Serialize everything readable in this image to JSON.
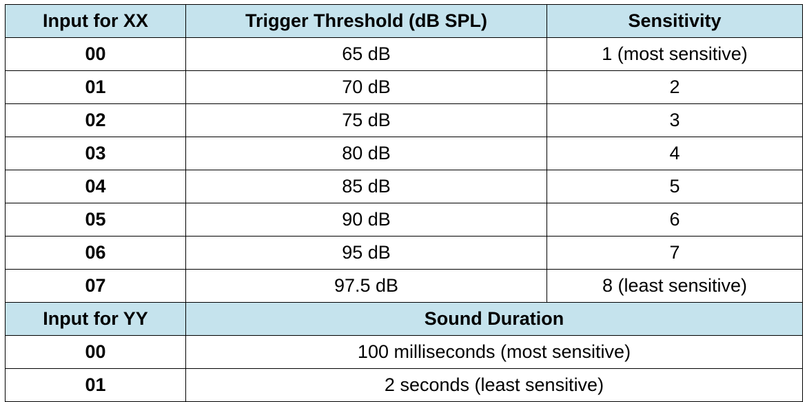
{
  "xx_table": {
    "headers": {
      "input": "Input for XX",
      "threshold": "Trigger Threshold (dB SPL)",
      "sensitivity": "Sensitivity"
    },
    "rows": [
      {
        "input": "00",
        "threshold": "65 dB",
        "sensitivity": "1 (most sensitive)"
      },
      {
        "input": "01",
        "threshold": "70 dB",
        "sensitivity": "2"
      },
      {
        "input": "02",
        "threshold": "75 dB",
        "sensitivity": "3"
      },
      {
        "input": "03",
        "threshold": "80 dB",
        "sensitivity": "4"
      },
      {
        "input": "04",
        "threshold": "85 dB",
        "sensitivity": "5"
      },
      {
        "input": "05",
        "threshold": "90 dB",
        "sensitivity": "6"
      },
      {
        "input": "06",
        "threshold": "95 dB",
        "sensitivity": "7"
      },
      {
        "input": "07",
        "threshold": "97.5 dB",
        "sensitivity": "8 (least sensitive)"
      }
    ]
  },
  "yy_table": {
    "headers": {
      "input": "Input for YY",
      "duration": "Sound Duration"
    },
    "rows": [
      {
        "input": "00",
        "duration": "100 milliseconds (most sensitive)"
      },
      {
        "input": "01",
        "duration": "2 seconds (least sensitive)"
      }
    ]
  },
  "colors": {
    "header_background": "#c5e3ed",
    "border": "#000000",
    "text": "#000000"
  }
}
